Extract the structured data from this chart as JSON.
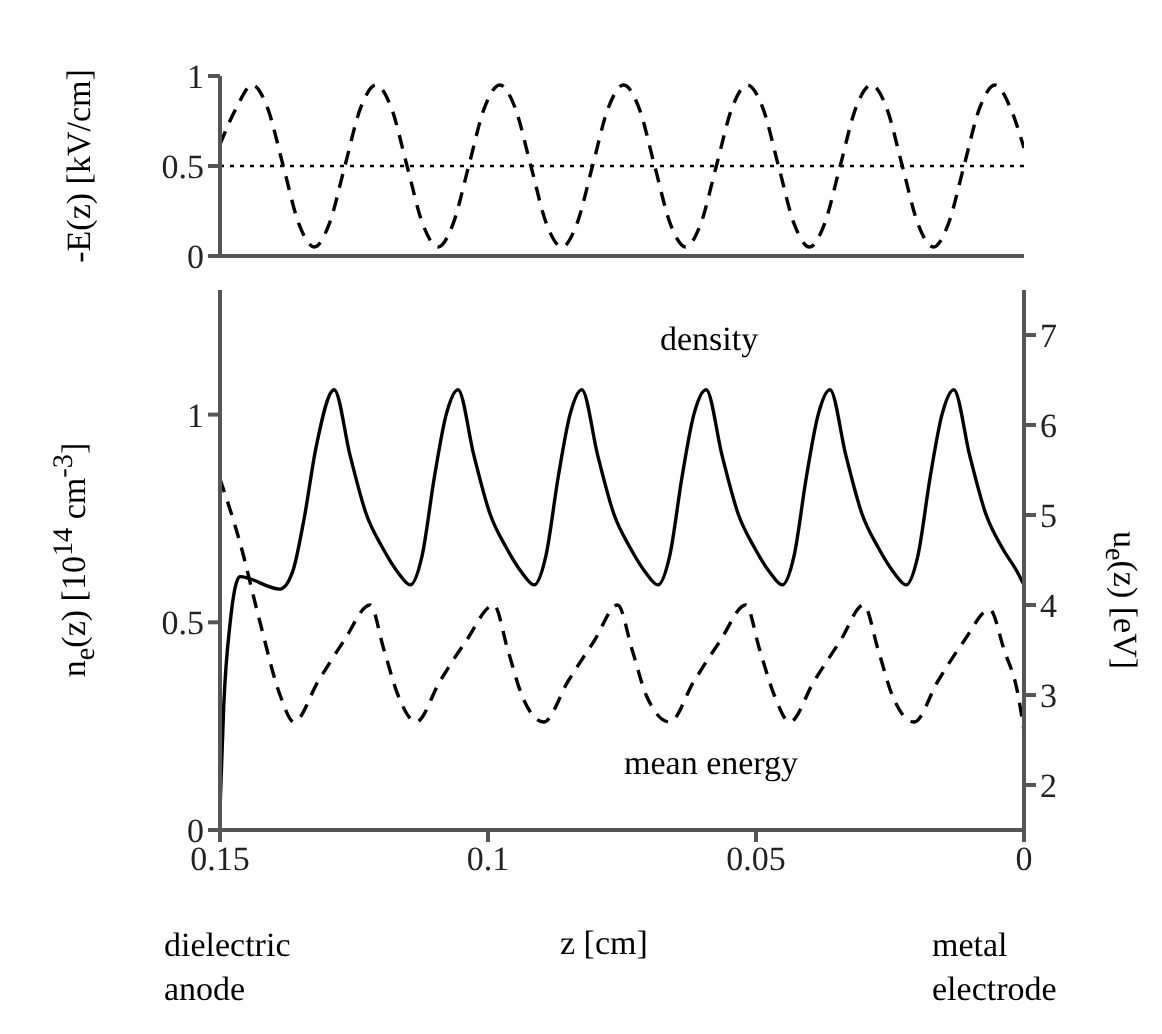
{
  "chart_data": [
    {
      "type": "line",
      "ylabel": "-E(z) [kV/cm]",
      "xlim": [
        0.15,
        0
      ],
      "xticks": [
        0.15,
        0.1,
        0.05,
        0
      ],
      "ylim": [
        0,
        1
      ],
      "yticks": [
        0,
        0.5,
        1
      ],
      "tick_labels": "y",
      "ref_lines": [
        {
          "axis": "y",
          "value": 0.5,
          "line_style": "dotted",
          "color": "#000000"
        }
      ],
      "series": [
        {
          "color": "#000000",
          "line_style": "dashed",
          "x": [
            0.15,
            0.147,
            0.144,
            0.1411,
            0.1382,
            0.1353,
            0.1324,
            0.1296,
            0.1267,
            0.1238,
            0.1209,
            0.118,
            0.1151,
            0.1122,
            0.1093,
            0.1065,
            0.1036,
            0.1007,
            0.0978,
            0.0949,
            0.092,
            0.0891,
            0.0862,
            0.0834,
            0.0805,
            0.0776,
            0.0747,
            0.0718,
            0.0689,
            0.066,
            0.0631,
            0.0603,
            0.0574,
            0.0545,
            0.0516,
            0.0487,
            0.0458,
            0.0429,
            0.04,
            0.0372,
            0.0343,
            0.0314,
            0.0285,
            0.0256,
            0.0227,
            0.0198,
            0.0169,
            0.0141,
            0.0112,
            0.0083,
            0.0054,
            0.0025,
            0
          ],
          "values": [
            0.62,
            0.82,
            0.95,
            0.82,
            0.5,
            0.18,
            0.05,
            0.18,
            0.5,
            0.82,
            0.95,
            0.82,
            0.5,
            0.18,
            0.05,
            0.18,
            0.5,
            0.82,
            0.95,
            0.82,
            0.5,
            0.18,
            0.05,
            0.18,
            0.5,
            0.82,
            0.95,
            0.82,
            0.5,
            0.18,
            0.05,
            0.18,
            0.5,
            0.82,
            0.95,
            0.82,
            0.5,
            0.18,
            0.05,
            0.18,
            0.5,
            0.82,
            0.95,
            0.82,
            0.5,
            0.18,
            0.05,
            0.18,
            0.5,
            0.82,
            0.95,
            0.82,
            0.6
          ]
        }
      ]
    },
    {
      "type": "line",
      "xlabel": "z [cm]",
      "ylabel": "n$_{e}$(z) [10$^{14}$ cm$^{-3}$]",
      "y2label": "u$_{e}$(z) [eV]",
      "xlim": [
        0.15,
        0
      ],
      "xticks": [
        0.15,
        0.1,
        0.05,
        0
      ],
      "ylim": [
        0,
        1.3
      ],
      "yticks": [
        0,
        0.5,
        1
      ],
      "y2lim": [
        1.5,
        7.5
      ],
      "y2ticks": [
        2,
        3,
        4,
        5,
        6,
        7
      ],
      "annotations": [
        "dielectric anode",
        "metal electrode"
      ],
      "series": [
        {
          "name": "density",
          "color": "#000000",
          "line_style": "solid",
          "x": [
            0.15,
            0.1493,
            0.1481,
            0.1463,
            0.1388,
            0.1365,
            0.1343,
            0.1321,
            0.1287,
            0.1257,
            0.1227,
            0.1197,
            0.1168,
            0.1145,
            0.1123,
            0.11,
            0.1078,
            0.1056,
            0.1026,
            0.0996,
            0.0966,
            0.0937,
            0.0914,
            0.0892,
            0.0869,
            0.0847,
            0.0825,
            0.0795,
            0.0765,
            0.0735,
            0.0706,
            0.0683,
            0.0661,
            0.0638,
            0.0616,
            0.0593,
            0.0563,
            0.0533,
            0.0503,
            0.0474,
            0.0451,
            0.0429,
            0.0406,
            0.0384,
            0.0362,
            0.0332,
            0.0302,
            0.0272,
            0.0243,
            0.022,
            0.0198,
            0.0175,
            0.0153,
            0.0131,
            0.0101,
            0.0071,
            0.0041,
            0.0012,
            0
          ],
          "values": [
            0.05,
            0.3,
            0.5,
            0.61,
            0.58,
            0.62,
            0.75,
            0.92,
            1.06,
            0.9,
            0.76,
            0.68,
            0.62,
            0.59,
            0.66,
            0.85,
            1.0,
            1.06,
            0.9,
            0.76,
            0.68,
            0.62,
            0.59,
            0.66,
            0.85,
            1.0,
            1.06,
            0.9,
            0.76,
            0.68,
            0.62,
            0.59,
            0.66,
            0.85,
            1.0,
            1.06,
            0.9,
            0.76,
            0.68,
            0.62,
            0.59,
            0.66,
            0.85,
            1.0,
            1.06,
            0.9,
            0.76,
            0.68,
            0.62,
            0.59,
            0.66,
            0.85,
            1.0,
            1.06,
            0.9,
            0.76,
            0.68,
            0.62,
            0.59
          ]
        },
        {
          "name": "mean energy",
          "axis": "y2",
          "color": "#000000",
          "line_style": "dashed",
          "x": [
            0.15,
            0.1463,
            0.1425,
            0.1388,
            0.1362,
            0.1317,
            0.1269,
            0.122,
            0.1194,
            0.1168,
            0.1134,
            0.109,
            0.1041,
            0.0989,
            0.0963,
            0.0937,
            0.0896,
            0.0851,
            0.0802,
            0.0758,
            0.0731,
            0.0705,
            0.0661,
            0.0616,
            0.0567,
            0.0519,
            0.0493,
            0.0466,
            0.0437,
            0.0392,
            0.0343,
            0.0299,
            0.0272,
            0.0246,
            0.0205,
            0.0161,
            0.0112,
            0.0064,
            0.0037,
            0.0011,
            0
          ],
          "values": [
            5.4,
            4.7,
            3.8,
            3.0,
            2.7,
            3.15,
            3.6,
            4.0,
            3.5,
            3.0,
            2.7,
            3.15,
            3.6,
            4.0,
            3.5,
            3.0,
            2.7,
            3.15,
            3.6,
            4.0,
            3.5,
            3.0,
            2.7,
            3.15,
            3.6,
            4.0,
            3.5,
            3.0,
            2.7,
            3.15,
            3.6,
            4.0,
            3.5,
            3.0,
            2.7,
            3.15,
            3.6,
            3.95,
            3.5,
            3.0,
            2.6
          ]
        }
      ]
    }
  ]
}
